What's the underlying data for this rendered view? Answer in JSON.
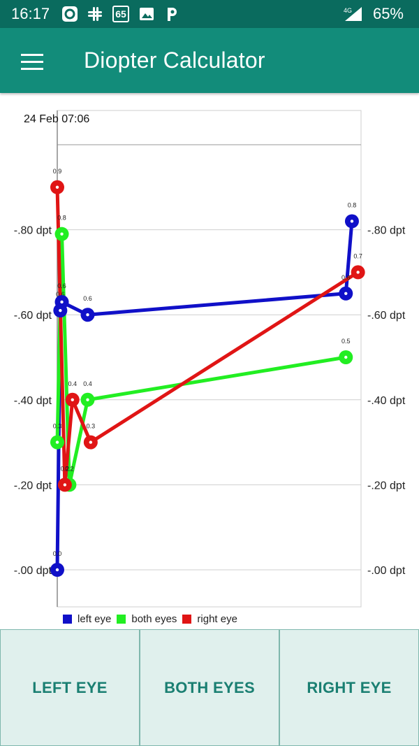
{
  "status_bar": {
    "time": "16:17",
    "network": "4G",
    "battery": "65%",
    "notification_icons": [
      "sync-icon",
      "slack-icon",
      "badge-65-icon",
      "gallery-icon",
      "p-icon"
    ],
    "badge_text": "65"
  },
  "app_bar": {
    "title": "Diopter Calculator",
    "menu_icon": "hamburger-menu-icon"
  },
  "chart_data": {
    "type": "line",
    "title": "24 Feb 07:06",
    "y_tick_labels": [
      "-.00 dpt",
      "-.20 dpt",
      "-.40 dpt",
      "-.60 dpt",
      "-.80 dpt"
    ],
    "y_ticks": [
      0,
      0.2,
      0.4,
      0.6,
      0.8
    ],
    "ylim": [
      -0.08,
      1.08
    ],
    "grid": true,
    "legend_position": "bottom-left",
    "series": [
      {
        "name": "left eye",
        "color": "#1010c8",
        "x": [
          0.0,
          0.01,
          0.015,
          0.1,
          0.95,
          0.97
        ],
        "values": [
          0.0,
          0.61,
          0.63,
          0.6,
          0.65,
          0.82
        ],
        "labels": [
          "0.0",
          "0.6",
          "0.6",
          "0.6",
          "0.6",
          "0.8"
        ]
      },
      {
        "name": "both eyes",
        "color": "#22ee22",
        "x": [
          0.0,
          0.015,
          0.04,
          0.1,
          0.95
        ],
        "values": [
          0.3,
          0.79,
          0.2,
          0.4,
          0.5
        ],
        "labels": [
          "0.3",
          "0.8",
          "0.2",
          "0.4",
          "0.5"
        ]
      },
      {
        "name": "right eye",
        "color": "#e01515",
        "x": [
          0.0,
          0.025,
          0.05,
          0.11,
          0.99
        ],
        "values": [
          0.9,
          0.2,
          0.4,
          0.3,
          0.7
        ],
        "labels": [
          "0.9",
          "0.2",
          "0.4",
          "0.3",
          "0.7"
        ]
      }
    ]
  },
  "buttons": {
    "left_eye": "LEFT EYE",
    "both_eyes": "BOTH EYES",
    "right_eye": "RIGHT EYE"
  }
}
